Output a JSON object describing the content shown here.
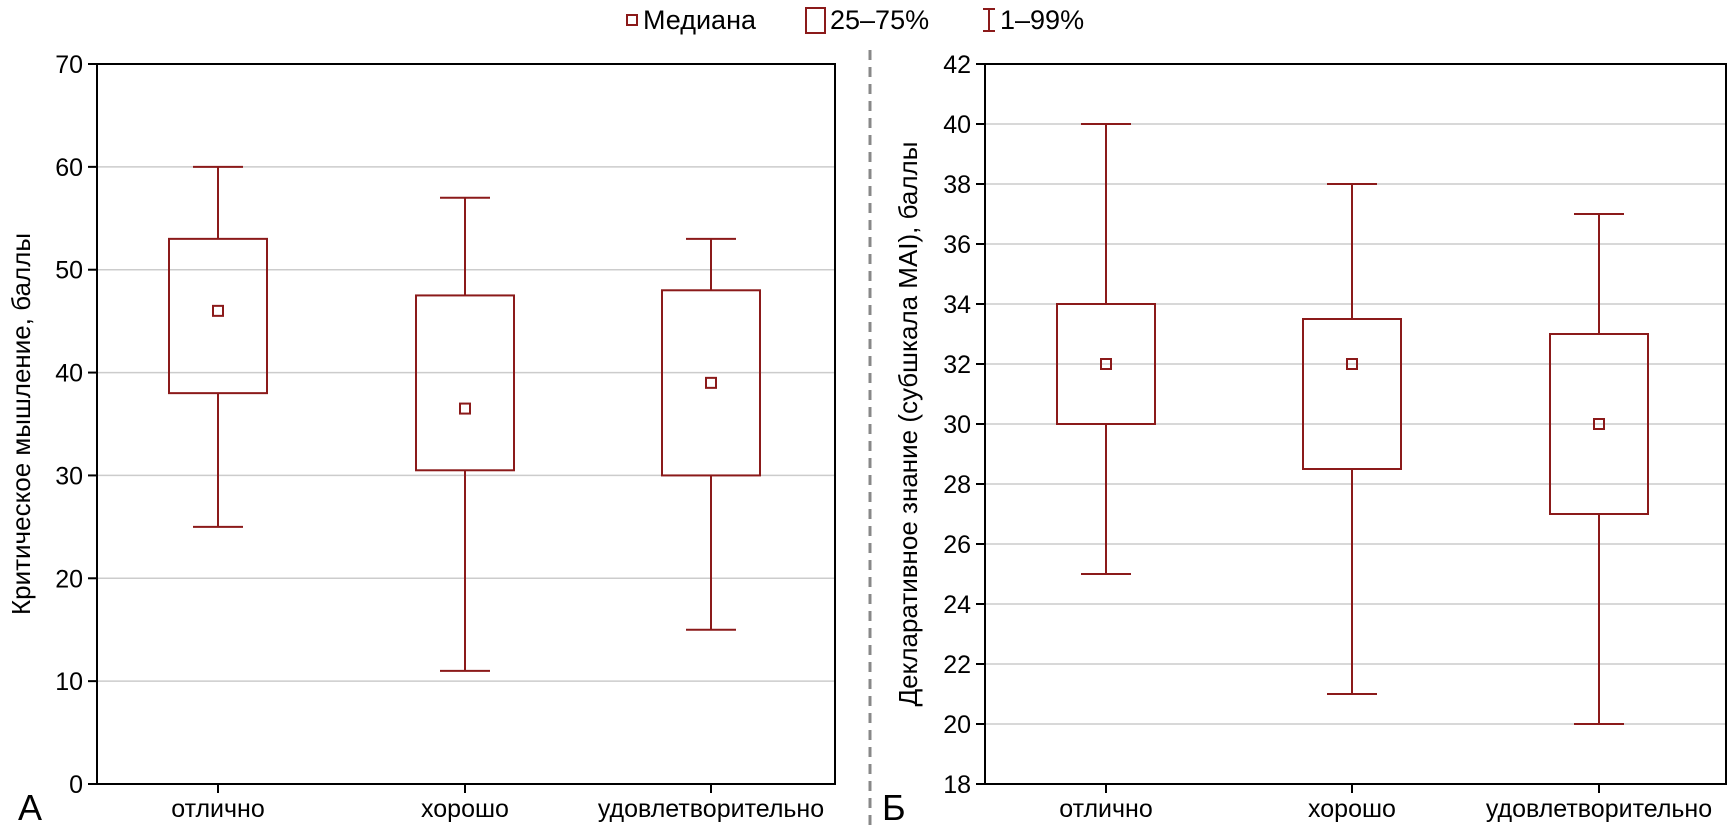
{
  "legend": {
    "median_label": "Медиана",
    "iqr_label": "25–75%",
    "range_label": "1–99%"
  },
  "colors": {
    "box": "#8b1a1a",
    "grid": "#cccccc",
    "axis": "#000000",
    "divider": "#888888"
  },
  "chart_data": [
    {
      "type": "box",
      "panel_label": "А",
      "title": "",
      "xlabel": "",
      "ylabel": "Критическое мышление, баллы",
      "ylim": [
        0,
        70
      ],
      "yticks": [
        0,
        10,
        20,
        30,
        40,
        50,
        60,
        70
      ],
      "grid": true,
      "categories": [
        "отлично",
        "хорошо",
        "удовлетворительно"
      ],
      "boxes": [
        {
          "category": "отлично",
          "min": 25,
          "q1": 38,
          "median": 46,
          "q3": 53,
          "max": 60
        },
        {
          "category": "хорошо",
          "min": 11,
          "q1": 30.5,
          "median": 36.5,
          "q3": 47.5,
          "max": 57
        },
        {
          "category": "удовлетворительно",
          "min": 15,
          "q1": 30,
          "median": 39,
          "q3": 48,
          "max": 53
        }
      ]
    },
    {
      "type": "box",
      "panel_label": "Б",
      "title": "",
      "xlabel": "",
      "ylabel": "Декларативное знание (субшкала MAI), баллы",
      "ylim": [
        18,
        42
      ],
      "yticks": [
        18,
        20,
        22,
        24,
        26,
        28,
        30,
        32,
        34,
        36,
        38,
        40,
        42
      ],
      "grid": true,
      "categories": [
        "отлично",
        "хорошо",
        "удовлетворительно"
      ],
      "boxes": [
        {
          "category": "отлично",
          "min": 25,
          "q1": 30,
          "median": 32,
          "q3": 34,
          "max": 40
        },
        {
          "category": "хорошо",
          "min": 21,
          "q1": 28.5,
          "median": 32,
          "q3": 33.5,
          "max": 38
        },
        {
          "category": "удовлетворительно",
          "min": 20,
          "q1": 27,
          "median": 30,
          "q3": 33,
          "max": 37
        }
      ]
    }
  ]
}
